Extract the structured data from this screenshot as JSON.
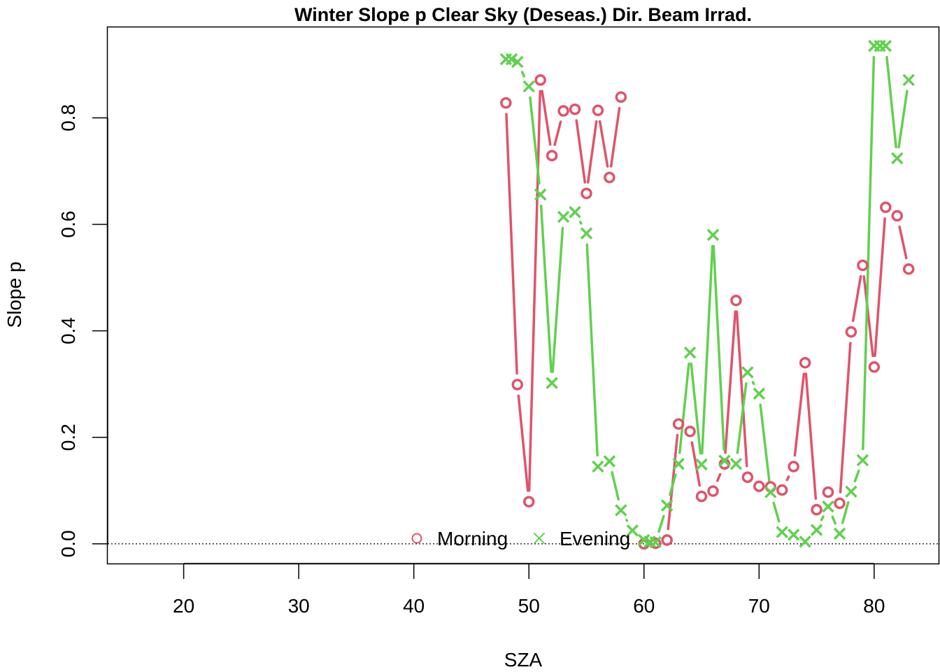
{
  "chart_data": {
    "type": "line",
    "title": "Winter Slope p Clear Sky (Deseas.) Dir. Beam Irrad.",
    "xlabel": "SZA",
    "ylabel": "Slope p",
    "xlim": [
      13.4,
      85.6
    ],
    "ylim": [
      -0.037,
      0.97
    ],
    "x_ticks": [
      "20",
      "30",
      "40",
      "50",
      "60",
      "70",
      "80"
    ],
    "x_tick_values": [
      20,
      30,
      40,
      50,
      60,
      70,
      80
    ],
    "y_ticks": [
      "0.0",
      "0.2",
      "0.4",
      "0.6",
      "0.8"
    ],
    "y_tick_values": [
      0,
      0.2,
      0.4,
      0.6,
      0.8
    ],
    "reference_line": {
      "y": 0,
      "style": "dotted"
    },
    "legend": {
      "placement": "bottom-center"
    },
    "series": [
      {
        "name": "Morning",
        "marker": "circle",
        "color": "#DF536B",
        "x": [
          48,
          49,
          50,
          51,
          52,
          53,
          54,
          55,
          56,
          57,
          58,
          59,
          60,
          61,
          62,
          63,
          64,
          65,
          66,
          67,
          68,
          69,
          70,
          71,
          72,
          73,
          74,
          75,
          76,
          77,
          78,
          79,
          80,
          81,
          82,
          83
        ],
        "values": [
          0.828,
          0.299,
          0.079,
          0.871,
          0.729,
          0.813,
          0.816,
          0.658,
          0.814,
          0.688,
          0.839,
          null,
          0.0,
          0.001,
          0.007,
          0.225,
          0.211,
          0.089,
          0.099,
          0.15,
          0.457,
          0.125,
          0.108,
          0.107,
          0.101,
          0.145,
          0.34,
          0.064,
          0.097,
          0.076,
          0.398,
          0.523,
          0.332,
          0.632,
          0.616,
          0.516
        ]
      },
      {
        "name": "Evening",
        "marker": "cross",
        "color": "#61D04F",
        "x": [
          48,
          48.5,
          49,
          50,
          51,
          52,
          53,
          54,
          55,
          56,
          57,
          58,
          59,
          60,
          60.5,
          61,
          62,
          63,
          64,
          65,
          66,
          67,
          68,
          69,
          70,
          71,
          72,
          73,
          74,
          75,
          76,
          77,
          78,
          79,
          80,
          80.5,
          81,
          82,
          83
        ],
        "values": [
          0.91,
          0.91,
          0.905,
          0.859,
          0.656,
          0.302,
          0.614,
          0.623,
          0.583,
          0.145,
          0.155,
          0.063,
          0.025,
          0.007,
          0.004,
          0.003,
          0.072,
          0.15,
          0.359,
          0.149,
          0.58,
          0.156,
          0.15,
          0.322,
          0.282,
          0.097,
          0.022,
          0.017,
          0.004,
          0.026,
          0.07,
          0.019,
          0.098,
          0.157,
          0.935,
          0.935,
          0.935,
          0.724,
          0.871
        ]
      }
    ]
  }
}
